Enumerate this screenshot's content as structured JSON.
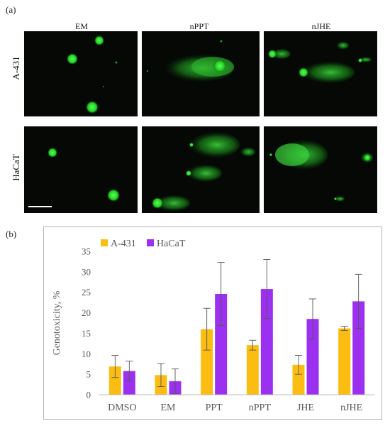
{
  "figure": {
    "panel_a": "(a)",
    "panel_b": "(b)",
    "columns": [
      "EM",
      "nPPT",
      "nJHE"
    ],
    "rows": [
      "A-431",
      "HaCaT"
    ]
  },
  "colors": {
    "a431": "#fbbd12",
    "hacat": "#9b30f0",
    "error": "#555555",
    "axis": "#bfbfbf",
    "text": "#595959",
    "comet": "#3ddc3d"
  },
  "chart_data": {
    "type": "bar",
    "categories": [
      "DMSO",
      "EM",
      "PPT",
      "nPPT",
      "JHE",
      "nJHE"
    ],
    "series": [
      {
        "name": "A-431",
        "values": [
          6.9,
          4.8,
          16.0,
          12.1,
          7.3,
          16.2
        ],
        "errors": [
          2.7,
          2.8,
          5.1,
          1.2,
          2.3,
          0.5
        ]
      },
      {
        "name": "HaCaT",
        "values": [
          5.8,
          3.3,
          24.6,
          25.8,
          18.5,
          22.8
        ],
        "errors": [
          2.4,
          3.0,
          7.7,
          7.2,
          4.9,
          6.6
        ]
      }
    ],
    "title": "",
    "xlabel": "",
    "ylabel": "Genotoxicity, %",
    "ylim": [
      0,
      35
    ],
    "yticks": [
      "0",
      "5",
      "10",
      "15",
      "20",
      "25",
      "30",
      "35"
    ],
    "legend": "top-left",
    "grid": false
  }
}
